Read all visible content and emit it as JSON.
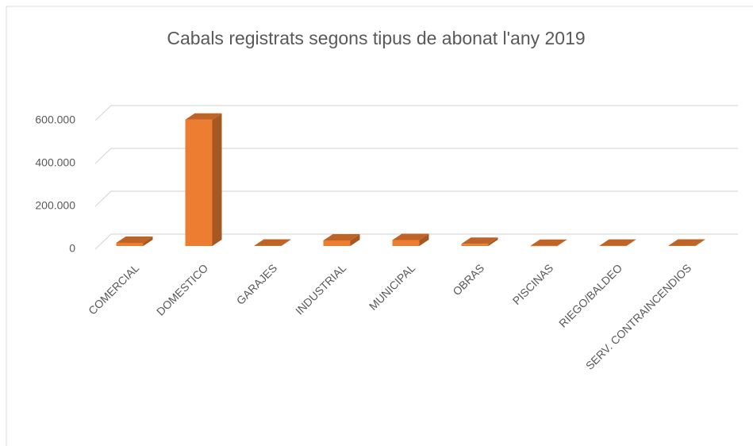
{
  "chart_data": {
    "type": "bar3d",
    "title": "Cabals registrats segons tipus de abonat l'any 2019",
    "categories": [
      "COMERCIAL",
      "DOMESTICO",
      "GARAJES",
      "INDUSTRIAL",
      "MUNICIPAL",
      "OBRAS",
      "PISCINAS",
      "RIEGO/BALDEO",
      "SERV. CONTRAINCENDIOS"
    ],
    "values": [
      15000,
      590000,
      2000,
      26000,
      28000,
      10000,
      1000,
      1500,
      2000
    ],
    "color": "#ed7d31",
    "ylim": [
      0,
      600000
    ],
    "yticks": [
      0,
      {
        "value": 200000,
        "label": "200.000"
      },
      {
        "value": 400000,
        "label": "400.000"
      },
      {
        "value": 600000,
        "label": "600.000"
      }
    ],
    "grid": true
  }
}
